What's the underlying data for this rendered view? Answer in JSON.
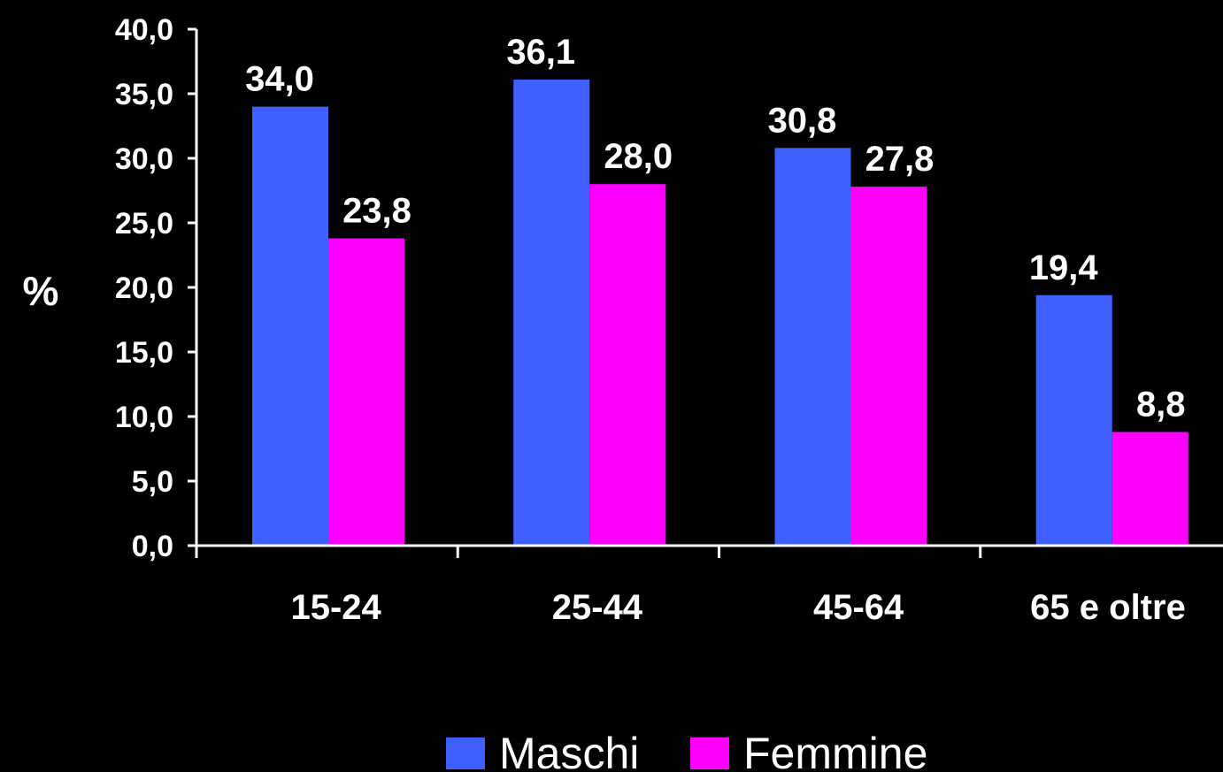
{
  "chart_data": {
    "type": "bar",
    "title": "",
    "xlabel": "",
    "ylabel": "%",
    "categories": [
      "15-24",
      "25-44",
      "45-64",
      "65 e oltre"
    ],
    "series": [
      {
        "name": "Maschi",
        "color": "#3F5FFF",
        "values": [
          34.0,
          36.1,
          30.8,
          19.4
        ],
        "labels": [
          "34,0",
          "36,1",
          "30,8",
          "19,4"
        ]
      },
      {
        "name": "Femmine",
        "color": "#FF00FF",
        "values": [
          23.8,
          28.0,
          27.8,
          8.8
        ],
        "labels": [
          "23,8",
          "28,0",
          "27,8",
          "8,8"
        ]
      }
    ],
    "ylim": [
      0,
      40
    ],
    "yticks": [
      0,
      5,
      10,
      15,
      20,
      25,
      30,
      35,
      40
    ],
    "ytick_labels": [
      "0,0",
      "5,0",
      "10,0",
      "15,0",
      "20,0",
      "25,0",
      "30,0",
      "35,0",
      "40,0"
    ],
    "grid": false,
    "legend_position": "bottom"
  }
}
